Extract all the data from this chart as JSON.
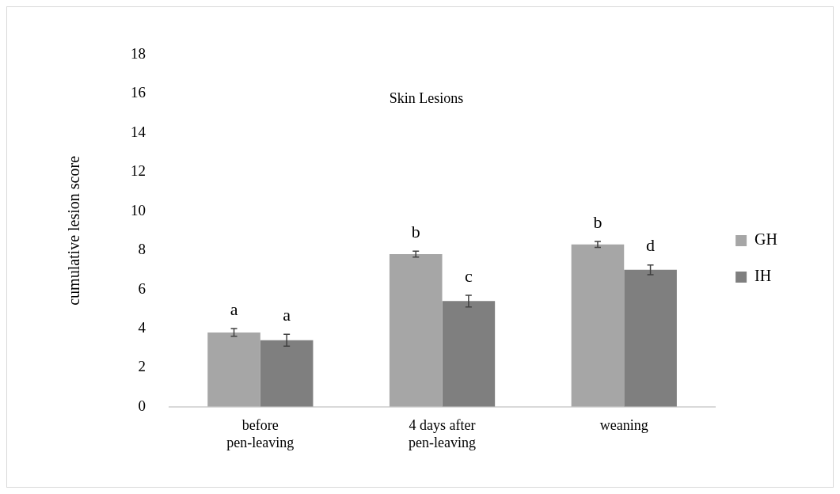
{
  "chart_data": {
    "type": "bar",
    "title": "Skin Lesions",
    "ylabel": "cumulative lesion score",
    "categories": [
      "before pen-leaving",
      "4 days after pen-leaving",
      "weaning"
    ],
    "series": [
      {
        "name": "GH",
        "color": "#a6a6a6",
        "values": [
          3.8,
          7.8,
          8.3
        ],
        "errors": [
          0.2,
          0.15,
          0.15
        ],
        "value_labels": [
          "a",
          "b",
          "b"
        ]
      },
      {
        "name": "IH",
        "color": "#7f7f7f",
        "values": [
          3.4,
          5.4,
          7.0
        ],
        "errors": [
          0.3,
          0.3,
          0.25
        ],
        "value_labels": [
          "a",
          "c",
          "d"
        ]
      }
    ],
    "ylim": [
      0,
      18
    ],
    "yticks": [
      0,
      2,
      4,
      6,
      8,
      10,
      12,
      14,
      16,
      18
    ],
    "grid": false,
    "legend": "right"
  }
}
